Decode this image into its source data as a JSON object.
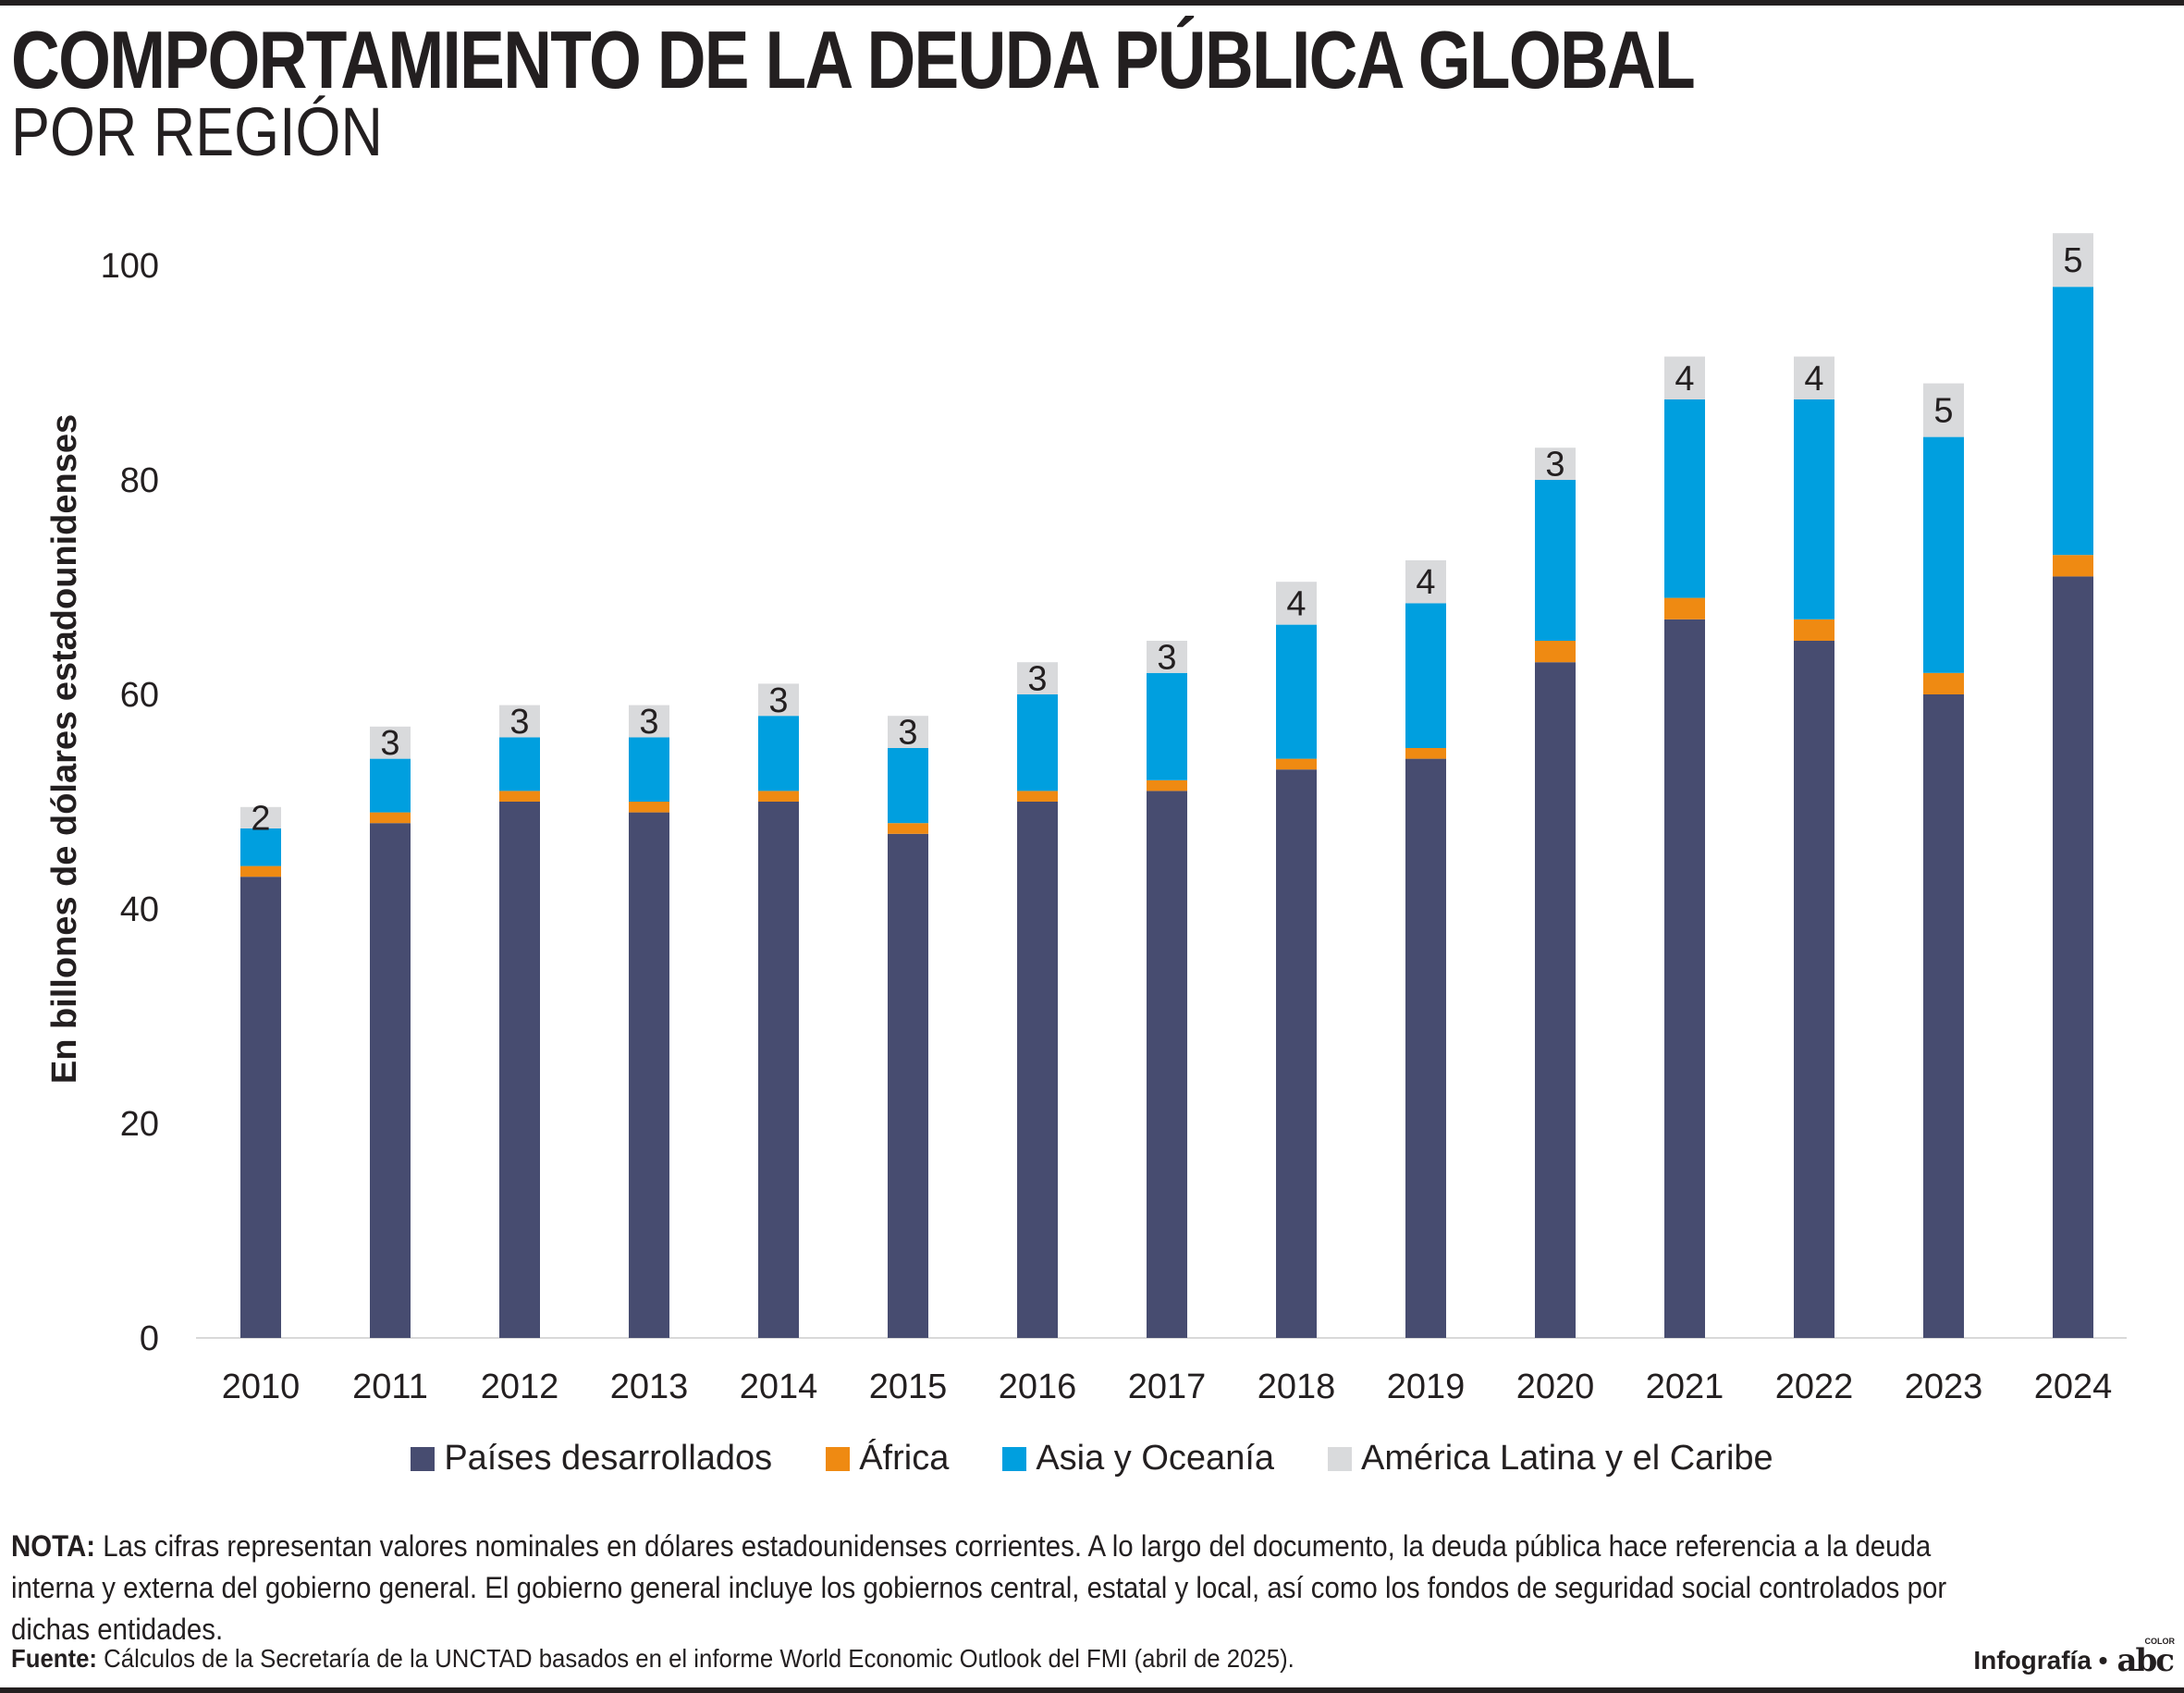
{
  "header": {
    "title": "COMPORTAMIENTO DE LA DEUDA PÚBLICA GLOBAL",
    "subtitle": "POR REGIÓN"
  },
  "chart_data": {
    "type": "bar",
    "stacked": true,
    "ylabel": "En billones de dólares estadounidenses",
    "ylim": [
      0,
      100
    ],
    "yticks": [
      0,
      20,
      40,
      60,
      80,
      100
    ],
    "grid": false,
    "legend_position": "bottom",
    "categories": [
      "2010",
      "2011",
      "2012",
      "2013",
      "2014",
      "2015",
      "2016",
      "2017",
      "2018",
      "2019",
      "2020",
      "2021",
      "2022",
      "2023",
      "2024"
    ],
    "series": [
      {
        "name": "Países desarrollados",
        "color": "#474c70",
        "values": [
          43,
          48,
          50,
          49,
          50,
          47,
          50,
          51,
          53,
          54,
          63,
          67,
          65,
          60,
          71
        ]
      },
      {
        "name": "África",
        "color": "#ef8a12",
        "values": [
          1,
          1,
          1,
          1,
          1,
          1,
          1,
          1,
          1,
          1,
          2,
          2,
          2,
          2,
          2
        ]
      },
      {
        "name": "Asia y Oceanía",
        "color": "#009fdf",
        "values": [
          3.5,
          5,
          5,
          6,
          7,
          7,
          9,
          10,
          12.5,
          13.5,
          15,
          18.5,
          20.5,
          22,
          25
        ]
      },
      {
        "name": "América Latina y el Caribe",
        "color": "#d9dadc",
        "values": [
          2,
          3,
          3,
          3,
          3,
          3,
          3,
          3,
          4,
          4,
          3,
          4,
          4,
          5,
          5
        ]
      }
    ],
    "data_labels": {
      "series": "América Latina y el Caribe",
      "labels": [
        "2",
        "3",
        "3",
        "3",
        "3",
        "3",
        "3",
        "3",
        "4",
        "4",
        "3",
        "4",
        "4",
        "5",
        "5"
      ]
    }
  },
  "note": {
    "label": "NOTA:",
    "text": "Las cifras representan valores nominales en dólares estadounidenses corrientes. A lo largo del documento, la deuda pública hace referencia a la deuda interna y externa del gobierno general. El gobierno general incluye los gobiernos central, estatal y local, así como los fondos de seguridad social controlados por dichas entidades."
  },
  "source": {
    "label": "Fuente:",
    "text": "Cálculos de la Secretaría de la UNCTAD basados en el informe World Economic Outlook del FMI (abril de 2025)."
  },
  "credit": {
    "text": "Infografía •",
    "logo": "abc",
    "logo_small": "COLOR"
  }
}
